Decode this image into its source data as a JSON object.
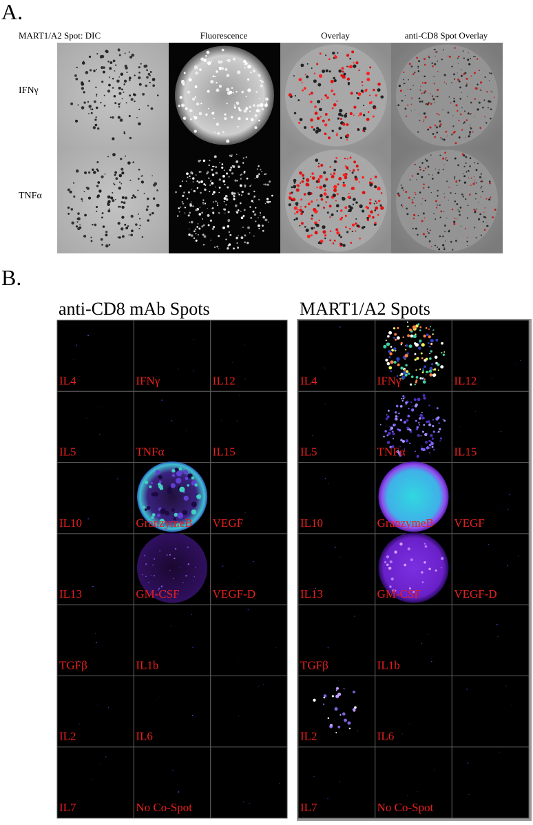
{
  "panel_a": {
    "label": "A.",
    "columns": [
      "MART1/A2 Spot:  DIC",
      "Fluorescence",
      "Overlay",
      "anti-CD8 Spot Overlay"
    ],
    "rows": [
      "IFNγ",
      "TNFα"
    ]
  },
  "panel_b": {
    "label": "B.",
    "grids": [
      {
        "title": "anti-CD8 mAb Spots",
        "cells": [
          [
            "IL4",
            "IFNγ",
            "IL12"
          ],
          [
            "IL5",
            "TNFα",
            "IL15"
          ],
          [
            "IL10",
            "GranzymeB",
            "VEGF"
          ],
          [
            "IL13",
            "GM-CSF",
            "VEGF-D"
          ],
          [
            "TGFβ",
            "IL1b"
          ],
          [
            "IL2",
            "IL6"
          ],
          [
            "IL7",
            "No Co-Spot"
          ]
        ]
      },
      {
        "title": "MART1/A2 Spots",
        "cells": [
          [
            "IL4",
            "IFNγ",
            "IL12"
          ],
          [
            "IL5",
            "TNFα",
            "IL15"
          ],
          [
            "IL10",
            "GranzymeB",
            "VEGF"
          ],
          [
            "IL13",
            "GM-CSF",
            "VEGF-D"
          ],
          [
            "TGFβ",
            "IL1b"
          ],
          [
            "IL2",
            "IL6"
          ],
          [
            "IL7",
            "No Co-Spot"
          ]
        ]
      }
    ]
  }
}
